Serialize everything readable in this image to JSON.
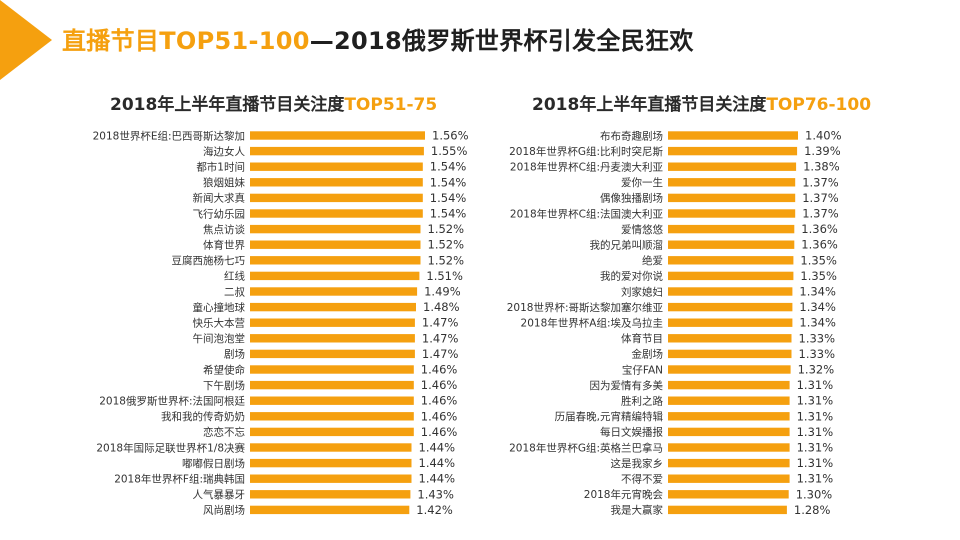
{
  "page": {
    "title_prefix": "直播节目TOP51-100",
    "title_suffix": "—2018俄罗斯世界杯引发全民狂欢",
    "accent_color": "#f5a00f"
  },
  "chart_data": [
    {
      "type": "bar",
      "orientation": "horizontal",
      "title_main": "2018年上半年直播节目关注度",
      "title_highlight": "TOP51-75",
      "bar_color": "#f5a00f",
      "categories": [
        "2018世界杯E组:巴西哥斯达黎加",
        "海边女人",
        "都市1时间",
        "狼烟姐妹",
        "新闻大求真",
        "飞行幼乐园",
        "焦点访谈",
        "体育世界",
        "豆腐西施杨七巧",
        "红线",
        "二叔",
        "童心撞地球",
        "快乐大本营",
        "午间泡泡堂",
        "剧场",
        "希望使命",
        "下午剧场",
        "2018俄罗斯世界杯:法国阿根廷",
        "我和我的传奇奶奶",
        "恋恋不忘",
        "2018年国际足联世界杯1/8决赛",
        "嘟嘟假日剧场",
        "2018年世界杯F组:瑞典韩国",
        "人气暴暴牙",
        "风尚剧场"
      ],
      "values": [
        1.56,
        1.55,
        1.54,
        1.54,
        1.54,
        1.54,
        1.52,
        1.52,
        1.52,
        1.51,
        1.49,
        1.48,
        1.47,
        1.47,
        1.47,
        1.46,
        1.46,
        1.46,
        1.46,
        1.46,
        1.44,
        1.44,
        1.44,
        1.43,
        1.42
      ],
      "labels": [
        "1.56%",
        "1.55%",
        "1.54%",
        "1.54%",
        "1.54%",
        "1.54%",
        "1.52%",
        "1.52%",
        "1.52%",
        "1.51%",
        "1.49%",
        "1.48%",
        "1.47%",
        "1.47%",
        "1.47%",
        "1.46%",
        "1.46%",
        "1.46%",
        "1.46%",
        "1.46%",
        "1.44%",
        "1.44%",
        "1.44%",
        "1.43%",
        "1.42%"
      ]
    },
    {
      "type": "bar",
      "orientation": "horizontal",
      "title_main": "2018年上半年直播节目关注度",
      "title_highlight": "TOP76-100",
      "bar_color": "#f5a00f",
      "categories": [
        "布布奇趣剧场",
        "2018年世界杯G组:比利时突尼斯",
        "2018年世界杯C组:丹麦澳大利亚",
        "爱你一生",
        "偶像独播剧场",
        "2018年世界杯C组:法国澳大利亚",
        "爱情悠悠",
        "我的兄弟叫顺溜",
        "绝爱",
        "我的爱对你说",
        "刘家媳妇",
        "2018世界杯:哥斯达黎加塞尔维亚",
        "2018年世界杯A组:埃及乌拉圭",
        "体育节目",
        "金剧场",
        "宝仔FAN",
        "因为爱情有多美",
        "胜利之路",
        "历届春晚,元宵精编特辑",
        "每日文娱播报",
        "2018年世界杯G组:英格兰巴拿马",
        "这是我家乡",
        "不得不爱",
        "2018年元宵晚会",
        "我是大赢家"
      ],
      "values": [
        1.4,
        1.39,
        1.38,
        1.37,
        1.37,
        1.37,
        1.36,
        1.36,
        1.35,
        1.35,
        1.34,
        1.34,
        1.34,
        1.33,
        1.33,
        1.32,
        1.31,
        1.31,
        1.31,
        1.31,
        1.31,
        1.31,
        1.31,
        1.3,
        1.28
      ],
      "labels": [
        "1.40%",
        "1.39%",
        "1.38%",
        "1.37%",
        "1.37%",
        "1.37%",
        "1.36%",
        "1.36%",
        "1.35%",
        "1.35%",
        "1.34%",
        "1.34%",
        "1.34%",
        "1.33%",
        "1.33%",
        "1.32%",
        "1.31%",
        "1.31%",
        "1.31%",
        "1.31%",
        "1.31%",
        "1.31%",
        "1.31%",
        "1.30%",
        "1.28%"
      ]
    }
  ]
}
